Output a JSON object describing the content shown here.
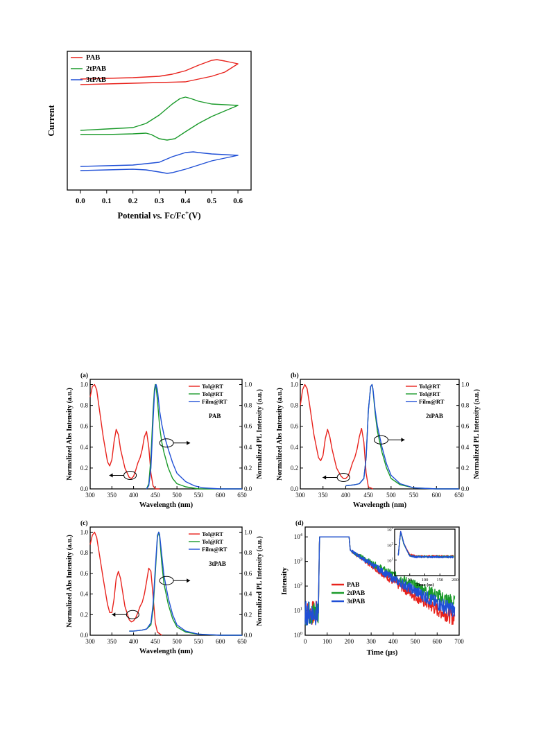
{
  "colors": {
    "red": "#e8221c",
    "green": "#1a9a2a",
    "blue": "#1f4fd6"
  },
  "chart_data": [
    {
      "id": "cv",
      "type": "line",
      "title": "",
      "xlabel_parts": [
        "Potential ",
        "vs.",
        " Fc/Fc",
        "+",
        "(V)"
      ],
      "ylabel": "Current",
      "xlim": [
        -0.05,
        0.65
      ],
      "xticks": [
        "0.0",
        "0.1",
        "0.2",
        "0.3",
        "0.4",
        "0.5",
        "0.6"
      ],
      "xtick_values": [
        0.0,
        0.1,
        0.2,
        0.3,
        0.4,
        0.5,
        0.6
      ],
      "ylim": [
        0,
        1
      ],
      "legend_position": "top-left",
      "series": [
        {
          "name": "PAB",
          "color": "red",
          "x": [
            0.0,
            0.1,
            0.2,
            0.3,
            0.35,
            0.4,
            0.45,
            0.5,
            0.52,
            0.55,
            0.6,
            0.55,
            0.5,
            0.45,
            0.4,
            0.3,
            0.2,
            0.1,
            0.0
          ],
          "y": [
            0.8,
            0.805,
            0.81,
            0.82,
            0.835,
            0.86,
            0.9,
            0.935,
            0.94,
            0.93,
            0.91,
            0.85,
            0.82,
            0.8,
            0.78,
            0.775,
            0.77,
            0.765,
            0.76
          ]
        },
        {
          "name": "2tPAB",
          "color": "green",
          "x": [
            0.0,
            0.1,
            0.2,
            0.25,
            0.3,
            0.35,
            0.38,
            0.4,
            0.42,
            0.45,
            0.5,
            0.55,
            0.6,
            0.55,
            0.5,
            0.45,
            0.4,
            0.36,
            0.33,
            0.3,
            0.27,
            0.25,
            0.2,
            0.1,
            0.0
          ],
          "y": [
            0.43,
            0.44,
            0.45,
            0.48,
            0.54,
            0.62,
            0.66,
            0.67,
            0.66,
            0.64,
            0.62,
            0.615,
            0.61,
            0.57,
            0.53,
            0.48,
            0.42,
            0.37,
            0.36,
            0.37,
            0.4,
            0.41,
            0.405,
            0.4,
            0.4
          ]
        },
        {
          "name": "3tPAB",
          "color": "blue",
          "x": [
            0.0,
            0.1,
            0.2,
            0.3,
            0.35,
            0.4,
            0.43,
            0.45,
            0.5,
            0.55,
            0.6,
            0.55,
            0.5,
            0.45,
            0.4,
            0.35,
            0.33,
            0.3,
            0.25,
            0.2,
            0.1,
            0.0
          ],
          "y": [
            0.17,
            0.175,
            0.18,
            0.2,
            0.24,
            0.27,
            0.275,
            0.27,
            0.26,
            0.255,
            0.25,
            0.23,
            0.21,
            0.18,
            0.15,
            0.125,
            0.12,
            0.13,
            0.145,
            0.15,
            0.145,
            0.14
          ]
        }
      ]
    },
    {
      "id": "a",
      "type": "line",
      "panel_label": "(a)",
      "compound_label": "PAB",
      "xlabel": "Wavelength (nm)",
      "ylabel_left": "Normalized Abs Intensity (a.u.)",
      "ylabel_right": "Normalized PL Intensity (a.u.)",
      "xlim": [
        300,
        650
      ],
      "ylim": [
        0,
        1.05
      ],
      "xticks": [
        "300",
        "350",
        "400",
        "450",
        "500",
        "550",
        "600",
        "650"
      ],
      "yticks_left": [
        "0.0",
        "0.2",
        "0.4",
        "0.6",
        "0.8",
        "1.0"
      ],
      "yticks_right": [
        "0.0",
        "0.2",
        "0.4",
        "0.6",
        "0.8",
        "1.0"
      ],
      "legend": [
        "Tol@RT",
        "Tol@RT",
        "Film@RT"
      ],
      "legend_position": "top-right",
      "series": [
        {
          "name": "Tol@RT",
          "color": "red",
          "x": [
            300,
            305,
            310,
            315,
            320,
            330,
            340,
            345,
            350,
            355,
            360,
            365,
            370,
            380,
            390,
            395,
            400,
            405,
            410,
            415,
            420,
            425,
            430,
            435,
            440,
            445,
            450,
            460
          ],
          "y": [
            0.88,
            0.98,
            1.0,
            0.95,
            0.8,
            0.5,
            0.26,
            0.22,
            0.28,
            0.45,
            0.57,
            0.52,
            0.38,
            0.2,
            0.11,
            0.1,
            0.12,
            0.18,
            0.25,
            0.3,
            0.38,
            0.5,
            0.55,
            0.4,
            0.15,
            0.03,
            0.0,
            0.0
          ]
        },
        {
          "name": "Tol@RT",
          "color": "green",
          "x": [
            430,
            435,
            440,
            445,
            448,
            450,
            452,
            455,
            460,
            465,
            470,
            480,
            490,
            500,
            520,
            550,
            600,
            650
          ],
          "y": [
            0.0,
            0.05,
            0.3,
            0.75,
            0.95,
            1.0,
            0.97,
            0.85,
            0.6,
            0.45,
            0.35,
            0.2,
            0.1,
            0.05,
            0.02,
            0.0,
            0.0,
            0.0
          ]
        },
        {
          "name": "Film@RT",
          "color": "blue",
          "x": [
            430,
            435,
            440,
            445,
            448,
            450,
            452,
            455,
            460,
            465,
            470,
            480,
            490,
            500,
            520,
            540,
            560,
            600,
            650
          ],
          "y": [
            0.0,
            0.03,
            0.2,
            0.65,
            0.9,
            0.98,
            1.0,
            0.95,
            0.75,
            0.62,
            0.52,
            0.38,
            0.25,
            0.15,
            0.07,
            0.03,
            0.01,
            0.0,
            0.0
          ]
        }
      ]
    },
    {
      "id": "b",
      "type": "line",
      "panel_label": "(b)",
      "compound_label": "2tPAB",
      "xlabel": "Wavelength (nm)",
      "ylabel_left": "Normalized Abs Intensity (a.u.)",
      "ylabel_right": "Normalized PL Intensity (a.u.)",
      "xlim": [
        300,
        650
      ],
      "ylim": [
        0,
        1.05
      ],
      "xticks": [
        "300",
        "350",
        "400",
        "450",
        "500",
        "550",
        "600",
        "650"
      ],
      "yticks_left": [
        "0.0",
        "0.2",
        "0.4",
        "0.6",
        "0.8",
        "1.0"
      ],
      "yticks_right": [
        "0.0",
        "0.2",
        "0.4",
        "0.6",
        "0.8",
        "1.0"
      ],
      "legend": [
        "Tol@RT",
        "Tol@RT",
        "Film@RT"
      ],
      "legend_position": "top-right",
      "series": [
        {
          "name": "Tol@RT",
          "color": "red",
          "x": [
            300,
            305,
            310,
            315,
            320,
            330,
            340,
            345,
            350,
            355,
            360,
            365,
            370,
            380,
            390,
            395,
            400,
            405,
            410,
            415,
            420,
            425,
            430,
            435,
            440,
            445,
            450,
            460
          ],
          "y": [
            0.8,
            0.95,
            1.0,
            0.96,
            0.82,
            0.52,
            0.3,
            0.27,
            0.32,
            0.48,
            0.57,
            0.5,
            0.38,
            0.2,
            0.12,
            0.1,
            0.1,
            0.12,
            0.18,
            0.25,
            0.3,
            0.38,
            0.5,
            0.58,
            0.45,
            0.15,
            0.02,
            0.0
          ]
        },
        {
          "name": "Tol@RT",
          "color": "green",
          "x": [
            400,
            420,
            430,
            440,
            445,
            450,
            455,
            458,
            460,
            465,
            470,
            480,
            490,
            500,
            520,
            550,
            600,
            650
          ],
          "y": [
            0.03,
            0.04,
            0.05,
            0.1,
            0.3,
            0.75,
            0.98,
            1.0,
            0.95,
            0.72,
            0.55,
            0.35,
            0.2,
            0.1,
            0.04,
            0.01,
            0.0,
            0.0
          ]
        },
        {
          "name": "Film@RT",
          "color": "blue",
          "x": [
            400,
            420,
            430,
            440,
            445,
            450,
            455,
            458,
            460,
            465,
            470,
            480,
            490,
            500,
            520,
            550,
            600,
            650
          ],
          "y": [
            0.03,
            0.04,
            0.05,
            0.1,
            0.3,
            0.75,
            0.98,
            1.0,
            0.96,
            0.75,
            0.6,
            0.4,
            0.24,
            0.13,
            0.05,
            0.01,
            0.0,
            0.0
          ]
        }
      ]
    },
    {
      "id": "c",
      "type": "line",
      "panel_label": "(c)",
      "compound_label": "3tPAB",
      "xlabel": "Wavelength (nm)",
      "ylabel_left": "Normalized Abs Intensity (a.u.)",
      "ylabel_right": "Normalized PL Intensity (a.u.)",
      "xlim": [
        300,
        650
      ],
      "ylim": [
        0,
        1.05
      ],
      "xticks": [
        "300",
        "350",
        "400",
        "450",
        "500",
        "550",
        "600",
        "650"
      ],
      "yticks_left": [
        "0.0",
        "0.2",
        "0.4",
        "0.6",
        "0.8",
        "1.0"
      ],
      "yticks_right": [
        "0.0",
        "0.2",
        "0.4",
        "0.6",
        "0.8",
        "1.0"
      ],
      "legend": [
        "Tol@RT",
        "Tol@RT",
        "Film@RT"
      ],
      "legend_position": "top-right",
      "series": [
        {
          "name": "Tol@RT",
          "color": "red",
          "x": [
            300,
            305,
            310,
            315,
            320,
            330,
            340,
            345,
            350,
            355,
            360,
            365,
            370,
            380,
            390,
            395,
            400,
            405,
            410,
            415,
            420,
            425,
            430,
            435,
            440,
            445,
            450,
            455,
            465
          ],
          "y": [
            0.88,
            0.97,
            1.0,
            0.95,
            0.82,
            0.55,
            0.3,
            0.22,
            0.22,
            0.35,
            0.55,
            0.62,
            0.55,
            0.28,
            0.15,
            0.13,
            0.14,
            0.17,
            0.22,
            0.28,
            0.32,
            0.4,
            0.52,
            0.65,
            0.62,
            0.38,
            0.12,
            0.03,
            0.0
          ]
        },
        {
          "name": "Tol@RT",
          "color": "green",
          "x": [
            390,
            400,
            420,
            430,
            440,
            445,
            450,
            455,
            458,
            460,
            465,
            470,
            480,
            490,
            500,
            520,
            550,
            600,
            650
          ],
          "y": [
            0.04,
            0.04,
            0.05,
            0.06,
            0.1,
            0.25,
            0.6,
            0.95,
            1.0,
            0.96,
            0.7,
            0.5,
            0.3,
            0.16,
            0.08,
            0.03,
            0.01,
            0.0,
            0.0
          ]
        },
        {
          "name": "Film@RT",
          "color": "blue",
          "x": [
            390,
            400,
            420,
            430,
            440,
            445,
            450,
            455,
            458,
            460,
            465,
            470,
            480,
            490,
            500,
            520,
            550,
            600,
            650
          ],
          "y": [
            0.04,
            0.04,
            0.05,
            0.06,
            0.12,
            0.3,
            0.65,
            0.97,
            1.0,
            0.98,
            0.78,
            0.58,
            0.36,
            0.2,
            0.1,
            0.04,
            0.01,
            0.0,
            0.0
          ]
        }
      ]
    },
    {
      "id": "d",
      "type": "line",
      "panel_label": "(d)",
      "xlabel": "Time (μs)",
      "ylabel": "Intensity",
      "y_scale": "log",
      "xlim": [
        0,
        700
      ],
      "ylim_exp": [
        0,
        4.4
      ],
      "xticks": [
        "0",
        "100",
        "200",
        "300",
        "400",
        "500",
        "600",
        "700"
      ],
      "xtick_values": [
        0,
        100,
        200,
        300,
        400,
        500,
        600,
        700
      ],
      "yticks_base": "10",
      "yticks_exp": [
        "0",
        "1",
        "2",
        "3",
        "4"
      ],
      "legend": [
        "PAB",
        "2tPAB",
        "3tPAB"
      ],
      "legend_position": "center-left",
      "series": [
        {
          "name": "PAB",
          "color": "red",
          "x": [
            0,
            60,
            65,
            200,
            205,
            300,
            400,
            500,
            600,
            680
          ],
          "log10y": [
            0.9,
            0.9,
            4.0,
            4.0,
            3.45,
            2.85,
            2.2,
            1.6,
            1.05,
            0.7
          ]
        },
        {
          "name": "2tPAB",
          "color": "green",
          "x": [
            0,
            60,
            65,
            200,
            205,
            300,
            400,
            500,
            600,
            680
          ],
          "log10y": [
            0.9,
            0.9,
            4.0,
            4.0,
            3.45,
            2.95,
            2.45,
            2.0,
            1.6,
            1.3
          ]
        },
        {
          "name": "3tPAB",
          "color": "blue",
          "x": [
            0,
            60,
            65,
            200,
            205,
            300,
            400,
            500,
            600,
            680
          ],
          "log10y": [
            0.9,
            0.9,
            4.0,
            4.0,
            3.45,
            2.9,
            2.3,
            1.8,
            1.3,
            1.0
          ]
        }
      ],
      "inset": {
        "xlabel": "Time (ns)",
        "xlim": [
          0,
          200
        ],
        "ylim_exp": [
          0,
          3
        ],
        "xticks": [
          "50",
          "100",
          "150",
          "200"
        ],
        "xtick_values": [
          50,
          100,
          150,
          200
        ],
        "yticks_base": "10",
        "yticks_exp": [
          "1",
          "2",
          "3"
        ],
        "series": [
          {
            "name": "PAB",
            "color": "red",
            "x": [
              12,
              18,
              20,
              25,
              30,
              40,
              50,
              70,
              100,
              150,
              195
            ],
            "log10y": [
              1.3,
              2.5,
              2.85,
              2.5,
              2.1,
              1.7,
              1.35,
              1.25,
              1.25,
              1.25,
              1.25
            ]
          },
          {
            "name": "2tPAB",
            "color": "green",
            "x": [
              12,
              18,
              20,
              25,
              30,
              40,
              50,
              70,
              100,
              150,
              195
            ],
            "log10y": [
              1.3,
              2.5,
              2.8,
              2.45,
              2.05,
              1.65,
              1.3,
              1.22,
              1.22,
              1.22,
              1.22
            ]
          },
          {
            "name": "3tPAB",
            "color": "blue",
            "x": [
              12,
              18,
              20,
              25,
              30,
              40,
              50,
              70,
              100,
              150,
              195
            ],
            "log10y": [
              1.3,
              2.5,
              2.85,
              2.5,
              2.1,
              1.65,
              1.3,
              1.2,
              1.2,
              1.2,
              1.2
            ]
          }
        ]
      }
    }
  ]
}
